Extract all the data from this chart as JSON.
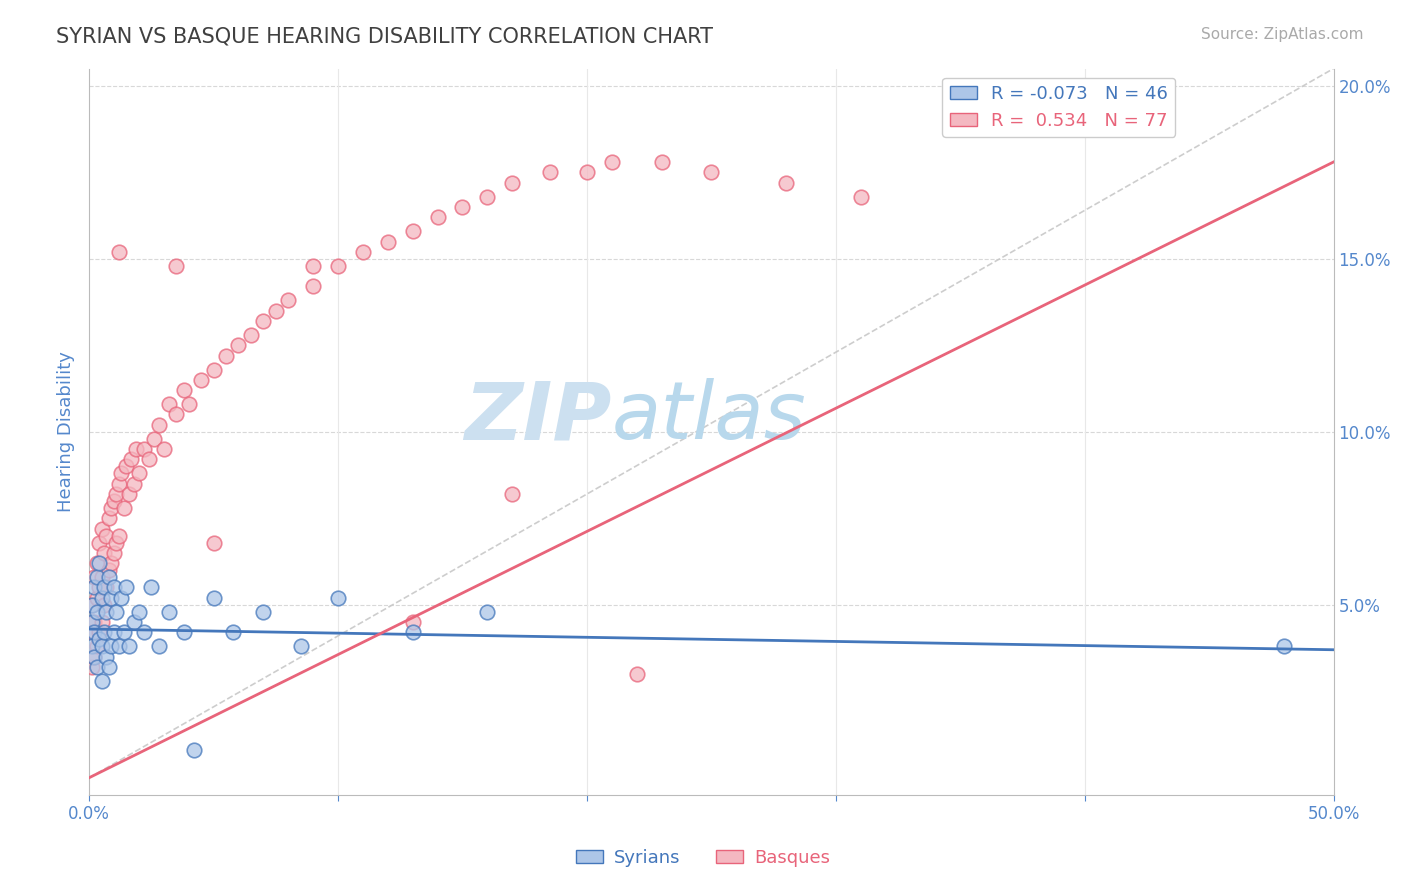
{
  "title": "SYRIAN VS BASQUE HEARING DISABILITY CORRELATION CHART",
  "source": "Source: ZipAtlas.com",
  "ylabel": "Hearing Disability",
  "right_yticks": [
    0.0,
    0.05,
    0.1,
    0.15,
    0.2
  ],
  "right_yticklabels": [
    "",
    "5.0%",
    "10.0%",
    "15.0%",
    "20.0%"
  ],
  "xlim": [
    0.0,
    0.5
  ],
  "ylim": [
    -0.005,
    0.205
  ],
  "syrian_R": -0.073,
  "syrian_N": 46,
  "basque_R": 0.534,
  "basque_N": 77,
  "syrian_color": "#adc6e8",
  "basque_color": "#f4b8c1",
  "syrian_line_color": "#4477bb",
  "basque_line_color": "#e8647a",
  "ref_line_color": "#c8c8c8",
  "watermark_zip_color": "#cde4f0",
  "watermark_atlas_color": "#b8d8ec",
  "title_color": "#404040",
  "axis_label_color": "#5588cc",
  "syrian_line_y0": 0.043,
  "syrian_line_y1": 0.037,
  "basque_line_y0": 0.0,
  "basque_line_y1": 0.178,
  "syrian_points_x": [
    0.001,
    0.001,
    0.001,
    0.002,
    0.002,
    0.002,
    0.003,
    0.003,
    0.003,
    0.004,
    0.004,
    0.005,
    0.005,
    0.005,
    0.006,
    0.006,
    0.007,
    0.007,
    0.008,
    0.008,
    0.009,
    0.009,
    0.01,
    0.01,
    0.011,
    0.012,
    0.013,
    0.014,
    0.015,
    0.016,
    0.018,
    0.02,
    0.022,
    0.025,
    0.028,
    0.032,
    0.038,
    0.042,
    0.05,
    0.058,
    0.07,
    0.085,
    0.1,
    0.13,
    0.16,
    0.48
  ],
  "syrian_points_y": [
    0.05,
    0.045,
    0.038,
    0.055,
    0.042,
    0.035,
    0.058,
    0.048,
    0.032,
    0.062,
    0.04,
    0.052,
    0.038,
    0.028,
    0.055,
    0.042,
    0.048,
    0.035,
    0.058,
    0.032,
    0.052,
    0.038,
    0.055,
    0.042,
    0.048,
    0.038,
    0.052,
    0.042,
    0.055,
    0.038,
    0.045,
    0.048,
    0.042,
    0.055,
    0.038,
    0.048,
    0.042,
    0.008,
    0.052,
    0.042,
    0.048,
    0.038,
    0.052,
    0.042,
    0.048,
    0.038
  ],
  "basque_points_x": [
    0.001,
    0.001,
    0.001,
    0.002,
    0.002,
    0.002,
    0.003,
    0.003,
    0.003,
    0.004,
    0.004,
    0.004,
    0.005,
    0.005,
    0.005,
    0.006,
    0.006,
    0.007,
    0.007,
    0.008,
    0.008,
    0.009,
    0.009,
    0.01,
    0.01,
    0.011,
    0.011,
    0.012,
    0.012,
    0.013,
    0.014,
    0.015,
    0.016,
    0.017,
    0.018,
    0.019,
    0.02,
    0.022,
    0.024,
    0.026,
    0.028,
    0.03,
    0.032,
    0.035,
    0.038,
    0.04,
    0.045,
    0.05,
    0.055,
    0.06,
    0.065,
    0.07,
    0.075,
    0.08,
    0.09,
    0.1,
    0.11,
    0.12,
    0.13,
    0.14,
    0.15,
    0.16,
    0.17,
    0.185,
    0.2,
    0.21,
    0.23,
    0.25,
    0.28,
    0.31,
    0.05,
    0.09,
    0.13,
    0.17,
    0.22,
    0.035,
    0.012
  ],
  "basque_points_y": [
    0.05,
    0.042,
    0.032,
    0.058,
    0.045,
    0.035,
    0.062,
    0.052,
    0.038,
    0.068,
    0.055,
    0.042,
    0.072,
    0.058,
    0.045,
    0.065,
    0.05,
    0.07,
    0.055,
    0.075,
    0.06,
    0.078,
    0.062,
    0.08,
    0.065,
    0.082,
    0.068,
    0.085,
    0.07,
    0.088,
    0.078,
    0.09,
    0.082,
    0.092,
    0.085,
    0.095,
    0.088,
    0.095,
    0.092,
    0.098,
    0.102,
    0.095,
    0.108,
    0.105,
    0.112,
    0.108,
    0.115,
    0.118,
    0.122,
    0.125,
    0.128,
    0.132,
    0.135,
    0.138,
    0.142,
    0.148,
    0.152,
    0.155,
    0.158,
    0.162,
    0.165,
    0.168,
    0.172,
    0.175,
    0.175,
    0.178,
    0.178,
    0.175,
    0.172,
    0.168,
    0.068,
    0.148,
    0.045,
    0.082,
    0.03,
    0.148,
    0.152
  ]
}
